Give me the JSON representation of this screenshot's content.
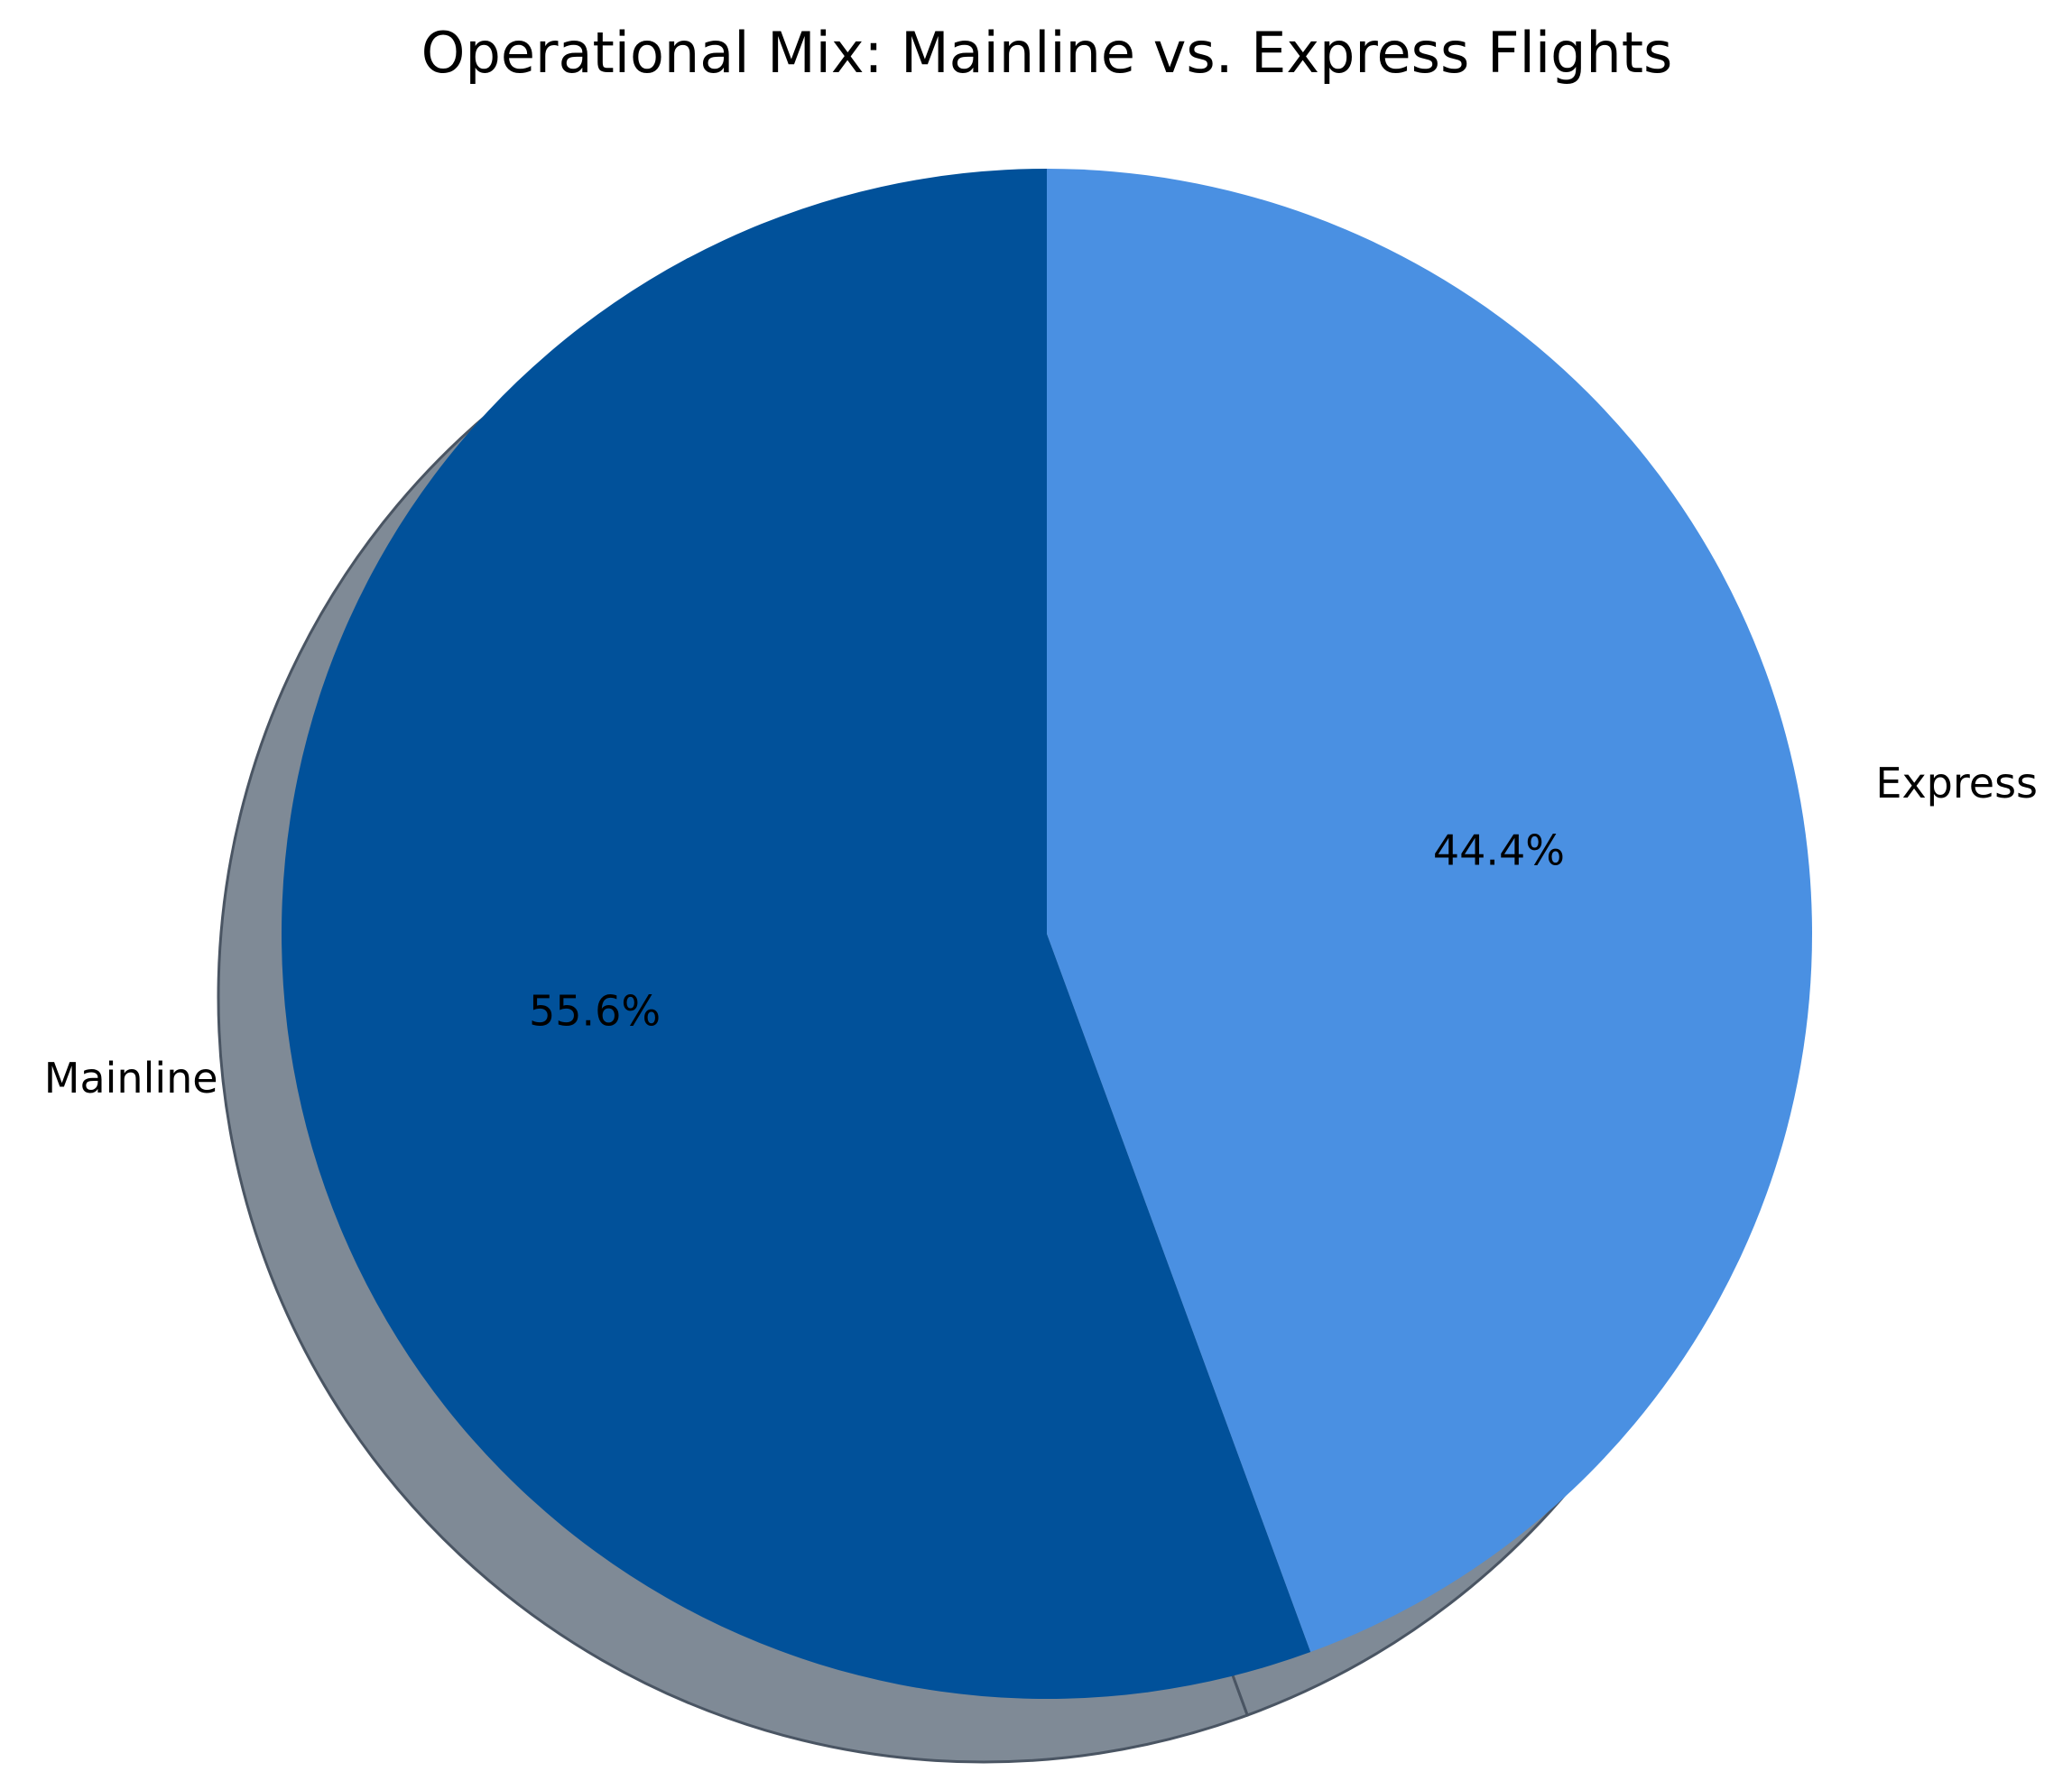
{
  "chart_data": {
    "type": "pie",
    "title": "Operational Mix: Mainline vs. Express Flights",
    "categories": [
      "Mainline",
      "Express"
    ],
    "values": [
      55.6,
      44.4
    ],
    "value_labels": [
      "55.6%",
      "44.4%"
    ],
    "colors": [
      "#01519a",
      "#4a90e2"
    ],
    "shadow": true,
    "shadow_color": "#7f8a96",
    "start_angle_deg": 90,
    "direction": "counterclockwise",
    "legend": "none"
  }
}
